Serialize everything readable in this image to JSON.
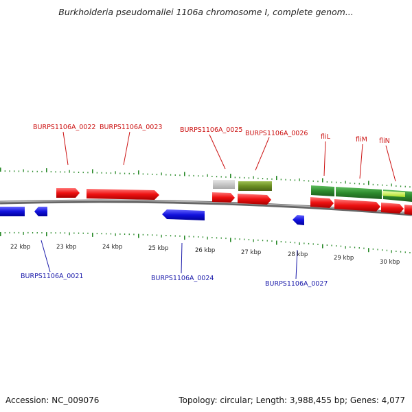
{
  "title": "Burkholderia pseudomallei 1106a chromosome I, complete genom...",
  "footer": {
    "accession": "Accession: NC_009076",
    "summary": "Topology: circular; Length: 3,988,455 bp; Genes: 4,077"
  },
  "scale_labels": [
    "22 kbp",
    "23 kbp",
    "24 kbp",
    "25 kbp",
    "26 kbp",
    "27 kbp",
    "28 kbp",
    "29 kbp",
    "30 kbp"
  ],
  "top_labels": [
    "BURPS1106A_0022",
    "BURPS1106A_0023",
    "BURPS1106A_0025",
    "BURPS1106A_0026",
    "fliL",
    "fliM",
    "fliN"
  ],
  "bottom_labels": [
    "BURPS1106A_0021",
    "BURPS1106A_0024",
    "BURPS1106A_0027"
  ],
  "colors": {
    "forward_gene": "#ee1111",
    "reverse_gene": "#1111dd",
    "feature_green": "#2e8b2e",
    "feature_olive": "#6b8e23",
    "feature_gray": "#bbbbbb",
    "feature_lime": "#ccff44",
    "backbone": "#888888",
    "ticks": "#2a8a2a"
  }
}
